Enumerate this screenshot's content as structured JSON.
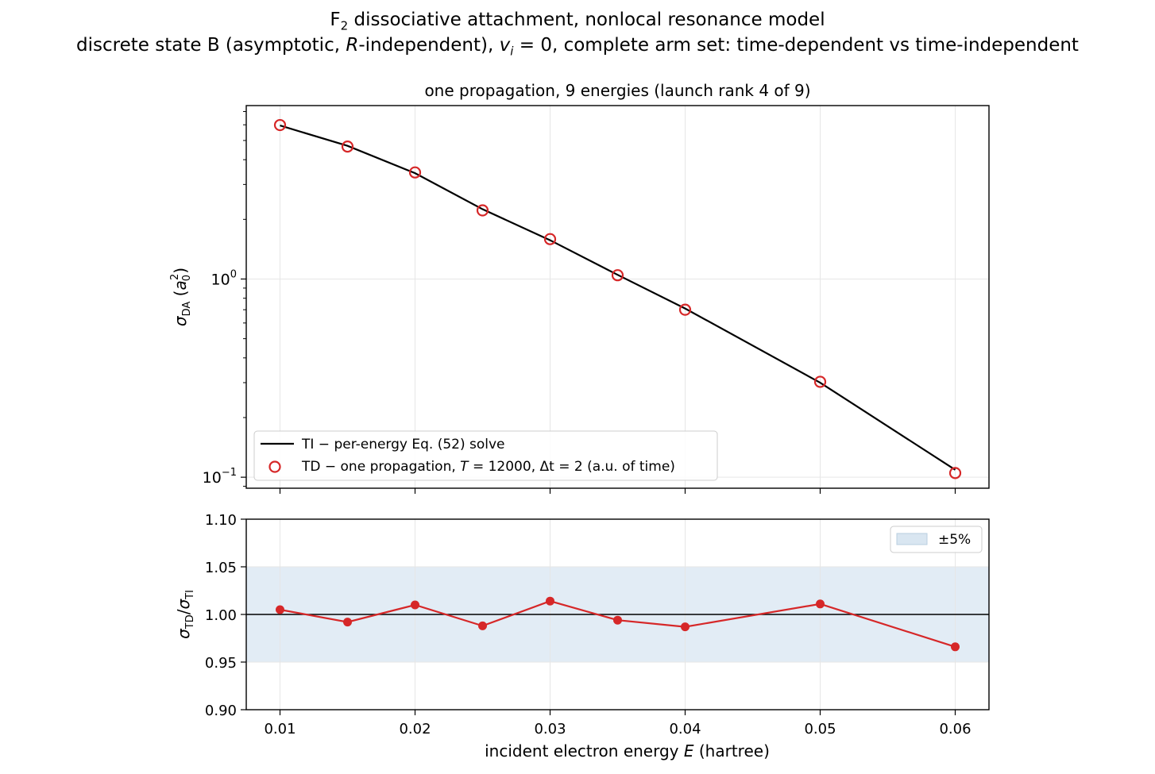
{
  "figure": {
    "title_line1": "F₂ dissociative attachment, nonlocal resonance model",
    "title_line2": "discrete state B (asymptotic, R-independent), vᵢ = 0, complete arm set: time-dependent vs time-independent"
  },
  "colors": {
    "ti_line": "#000000",
    "td_marker": "#d62728",
    "ratio_line": "#d62728",
    "band_fill": "#cfe0ee",
    "grid": "#e6e6e6"
  },
  "chart_data": [
    {
      "id": "top",
      "type": "line",
      "title": "one propagation, 9 energies (launch rank 4 of 9)",
      "ylabel": "σDA (a0²)",
      "yscale": "log",
      "ylim": [
        0.088,
        7.5
      ],
      "xlim": [
        0.0075,
        0.0625
      ],
      "xticks": [
        0.01,
        0.02,
        0.03,
        0.04,
        0.05,
        0.06
      ],
      "yticks": [
        {
          "value": 1,
          "label": "10⁰"
        },
        {
          "value": 0.1,
          "label": "10⁻¹"
        }
      ],
      "grid": true,
      "legend_position": "lower-left",
      "x": [
        0.01,
        0.015,
        0.02,
        0.025,
        0.03,
        0.035,
        0.04,
        0.05,
        0.06
      ],
      "series": [
        {
          "name": "TI − per-energy Eq. (52) solve",
          "style": "line",
          "values": [
            5.95,
            4.7,
            3.42,
            2.25,
            1.57,
            1.05,
            0.71,
            0.3,
            0.109
          ]
        },
        {
          "name": "TD − one propagation, T = 12000, Δt = 2 (a.u. of time)",
          "style": "open-circle",
          "values": [
            5.98,
            4.66,
            3.45,
            2.22,
            1.59,
            1.045,
            0.7,
            0.303,
            0.105
          ]
        }
      ]
    },
    {
      "id": "bottom",
      "type": "line",
      "xlabel": "incident electron energy E (hartree)",
      "ylabel": "σTD/σTI",
      "ylim": [
        0.9,
        1.1
      ],
      "xlim": [
        0.0075,
        0.0625
      ],
      "xticks": [
        0.01,
        0.02,
        0.03,
        0.04,
        0.05,
        0.06
      ],
      "xtick_labels": [
        "0.01",
        "0.02",
        "0.03",
        "0.04",
        "0.05",
        "0.06"
      ],
      "yticks": [
        0.9,
        0.95,
        1.0,
        1.05,
        1.1
      ],
      "ytick_labels": [
        "0.90",
        "0.95",
        "1.00",
        "1.05",
        "1.10"
      ],
      "grid": true,
      "band": {
        "name": "±5%",
        "low": 0.95,
        "high": 1.05
      },
      "reference_line": 1.0,
      "legend_position": "top-right",
      "x": [
        0.01,
        0.015,
        0.02,
        0.025,
        0.03,
        0.035,
        0.04,
        0.05,
        0.06
      ],
      "values": [
        1.005,
        0.992,
        1.01,
        0.988,
        1.014,
        0.994,
        0.987,
        1.011,
        0.966
      ]
    }
  ]
}
